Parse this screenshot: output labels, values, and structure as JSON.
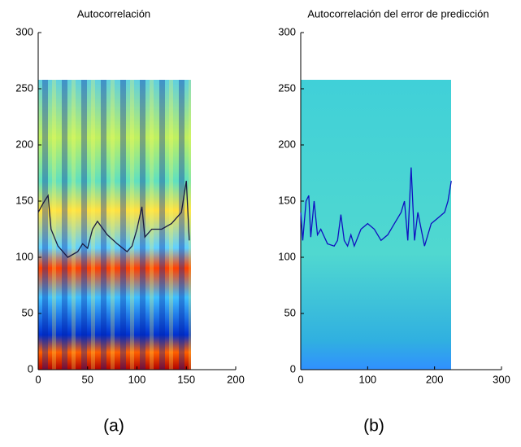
{
  "chart_data": [
    {
      "type": "line",
      "title": "Autocorrelación",
      "caption": "(a)",
      "xlim": [
        0,
        200
      ],
      "ylim": [
        0,
        300
      ],
      "xticks": [
        0,
        50,
        100,
        150,
        200
      ],
      "yticks": [
        0,
        50,
        100,
        150,
        200,
        250,
        300
      ],
      "series": [
        {
          "color": "#1a1a40",
          "x": [
            0,
            5,
            10,
            13,
            20,
            30,
            40,
            45,
            50,
            55,
            60,
            70,
            80,
            90,
            95,
            100,
            105,
            108,
            115,
            125,
            135,
            145,
            150,
            153
          ],
          "values": [
            140,
            148,
            155,
            125,
            110,
            100,
            105,
            112,
            108,
            125,
            132,
            120,
            112,
            105,
            110,
            125,
            145,
            118,
            125,
            125,
            130,
            140,
            168,
            115
          ]
        }
      ]
    },
    {
      "type": "line",
      "title": "Autocorrelación del error de predicción",
      "caption": "(b)",
      "xlim": [
        0,
        300
      ],
      "ylim": [
        0,
        300
      ],
      "xticks": [
        0,
        100,
        200,
        300
      ],
      "yticks": [
        0,
        50,
        100,
        150,
        200,
        250,
        300
      ],
      "series": [
        {
          "color": "#1010c0",
          "x": [
            0,
            3,
            8,
            12,
            15,
            20,
            25,
            30,
            40,
            50,
            55,
            60,
            65,
            70,
            75,
            80,
            90,
            100,
            110,
            120,
            130,
            140,
            150,
            155,
            160,
            165,
            170,
            175,
            185,
            195,
            205,
            215,
            220,
            225
          ],
          "values": [
            140,
            115,
            150,
            155,
            118,
            150,
            120,
            125,
            112,
            110,
            115,
            138,
            115,
            110,
            120,
            110,
            125,
            130,
            125,
            115,
            120,
            130,
            140,
            150,
            115,
            180,
            115,
            140,
            110,
            130,
            135,
            140,
            150,
            168
          ]
        }
      ]
    }
  ]
}
